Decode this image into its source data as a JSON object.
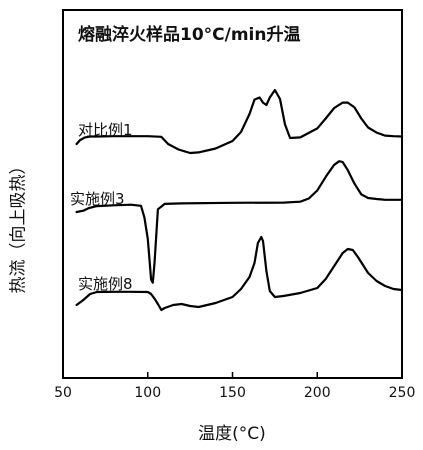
{
  "chart_data": {
    "type": "line",
    "title": "熔融淬火样品10°C/min升温",
    "xlabel": "温度(°C)",
    "ylabel": "热流（向上吸热）",
    "xlim": [
      50,
      250
    ],
    "xticks": [
      50,
      100,
      150,
      200,
      250
    ],
    "yticks_shown": false,
    "grid": false,
    "series": [
      {
        "name": "对比例1",
        "x": [
          58,
          60,
          63,
          66,
          70,
          80,
          90,
          100,
          108,
          112,
          118,
          125,
          130,
          140,
          150,
          155,
          160,
          163,
          166,
          168,
          170,
          172,
          175,
          178,
          181,
          184,
          190,
          200,
          205,
          210,
          215,
          218,
          222,
          226,
          230,
          235,
          240,
          245,
          250
        ],
        "y": [
          0.2,
          0.33,
          0.42,
          0.45,
          0.45,
          0.46,
          0.46,
          0.46,
          0.44,
          0.2,
          0.02,
          -0.1,
          -0.08,
          0.05,
          0.3,
          0.6,
          1.2,
          1.68,
          1.75,
          1.58,
          1.5,
          1.75,
          2.0,
          1.7,
          0.85,
          0.4,
          0.42,
          0.72,
          1.05,
          1.4,
          1.58,
          1.58,
          1.42,
          1.05,
          0.75,
          0.58,
          0.48,
          0.46,
          0.45
        ]
      },
      {
        "name": "实施例3",
        "x": [
          58,
          62,
          65,
          70,
          80,
          90,
          96,
          98,
          100,
          102,
          103,
          104,
          106,
          110,
          120,
          150,
          180,
          190,
          195,
          200,
          205,
          210,
          213,
          215,
          218,
          222,
          226,
          230,
          235,
          240,
          245,
          250
        ],
        "y": [
          0.0,
          0.05,
          0.14,
          0.22,
          0.25,
          0.27,
          0.23,
          -0.2,
          -1.0,
          -2.5,
          -2.62,
          -1.9,
          0.1,
          0.3,
          0.32,
          0.34,
          0.35,
          0.38,
          0.5,
          0.8,
          1.3,
          1.75,
          1.88,
          1.85,
          1.55,
          1.05,
          0.65,
          0.52,
          0.48,
          0.45,
          0.45,
          0.45
        ]
      },
      {
        "name": "实施例8",
        "x": [
          58,
          62,
          66,
          70,
          80,
          90,
          100,
          102,
          104,
          106,
          108,
          110,
          115,
          120,
          125,
          130,
          140,
          150,
          155,
          160,
          163,
          165,
          167,
          168,
          170,
          172,
          175,
          180,
          190,
          200,
          205,
          210,
          215,
          218,
          221,
          224,
          227,
          230,
          235,
          240,
          245,
          250
        ],
        "y": [
          0.0,
          0.25,
          0.55,
          0.65,
          0.66,
          0.66,
          0.65,
          0.55,
          0.32,
          0.05,
          -0.25,
          -0.15,
          0.0,
          0.05,
          -0.05,
          -0.1,
          0.1,
          0.4,
          0.8,
          1.4,
          2.1,
          3.1,
          3.4,
          3.2,
          1.7,
          0.7,
          0.4,
          0.45,
          0.6,
          0.85,
          1.3,
          1.95,
          2.6,
          2.8,
          2.75,
          2.4,
          2.0,
          1.6,
          1.2,
          0.95,
          0.8,
          0.75
        ]
      }
    ]
  }
}
